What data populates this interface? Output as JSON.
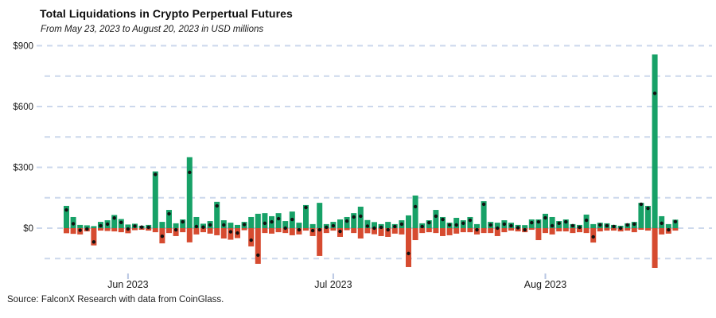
{
  "page": {
    "title": "Total Liquidations in Crypto Perpertual Futures",
    "subtitle": "From May 23, 2023 to August 20, 2023 in USD millions",
    "source": "Source: FalconX Research with data from CoinGlass."
  },
  "colors": {
    "up_bar": "#17a167",
    "down_bar": "#d64b30",
    "dot": "#111111",
    "grid": "#ccd8ec",
    "tick_mark": "#b9c7e3",
    "axis_text": "#1a1a1a"
  },
  "chart_data": {
    "type": "bar",
    "title": "Total Liquidations in Crypto Perpertual Futures",
    "subtitle": "From May 23, 2023 to August 20, 2023 in USD millions",
    "unit": "USD millions",
    "date_start": "2023-05-23",
    "date_end": "2023-08-20",
    "x_ticks": [
      {
        "date": "2023-06-01",
        "label": "Jun 2023"
      },
      {
        "date": "2023-07-01",
        "label": "Jul 2023"
      },
      {
        "date": "2023-08-01",
        "label": "Aug 2023"
      }
    ],
    "y_ticks": [
      {
        "value": 0,
        "label": "$0"
      },
      {
        "value": 300,
        "label": "$300"
      },
      {
        "value": 600,
        "label": "$600"
      },
      {
        "value": 900,
        "label": "$900"
      }
    ],
    "y_minor_ticks": [
      -150,
      150,
      450,
      750
    ],
    "ylim": [
      -250,
      900
    ],
    "grid": "dashed horizontal",
    "legend_position": "none",
    "columns": [
      "date",
      "up_green",
      "down_red",
      "net_dot"
    ],
    "days": [
      [
        "May 23",
        110,
        -25,
        90
      ],
      [
        "May 24",
        55,
        -28,
        22
      ],
      [
        "May 25",
        16,
        -31,
        -10
      ],
      [
        "May 26",
        14,
        -16,
        -4
      ],
      [
        "May 27",
        10,
        -85,
        -68
      ],
      [
        "May 28",
        31,
        -12,
        12
      ],
      [
        "May 29",
        39,
        -14,
        20
      ],
      [
        "May 30",
        65,
        -16,
        50
      ],
      [
        "May 31",
        45,
        -20,
        28
      ],
      [
        "Jun 1",
        18,
        -25,
        -4
      ],
      [
        "Jun 2",
        22,
        -10,
        10
      ],
      [
        "Jun 3",
        12,
        -8,
        5
      ],
      [
        "Jun 4",
        16,
        -12,
        4
      ],
      [
        "Jun 5",
        280,
        -20,
        265
      ],
      [
        "Jun 6",
        31,
        -75,
        -40
      ],
      [
        "Jun 7",
        90,
        -24,
        71
      ],
      [
        "Jun 8",
        24,
        -39,
        -8
      ],
      [
        "Jun 9",
        43,
        -20,
        31
      ],
      [
        "Jun 10",
        350,
        -70,
        275
      ],
      [
        "Jun 11",
        55,
        -31,
        8
      ],
      [
        "Jun 12",
        22,
        -20,
        5
      ],
      [
        "Jun 13",
        35,
        -27,
        16
      ],
      [
        "Jun 14",
        130,
        -35,
        110
      ],
      [
        "Jun 15",
        39,
        -51,
        16
      ],
      [
        "Jun 16",
        27,
        -57,
        -18
      ],
      [
        "Jun 17",
        16,
        -49,
        -24
      ],
      [
        "Jun 18",
        31,
        -10,
        18
      ],
      [
        "Jun 19",
        55,
        -90,
        -59
      ],
      [
        "Jun 20",
        71,
        -176,
        -133
      ],
      [
        "Jun 21",
        74,
        -24,
        24
      ],
      [
        "Jun 22",
        59,
        -27,
        31
      ],
      [
        "Jun 23",
        74,
        -20,
        47
      ],
      [
        "Jun 24",
        35,
        -24,
        0
      ],
      [
        "Jun 25",
        82,
        -35,
        43
      ],
      [
        "Jun 26",
        27,
        -31,
        -8
      ],
      [
        "Jun 27",
        114,
        -12,
        102
      ],
      [
        "Jun 28",
        20,
        -39,
        -12
      ],
      [
        "Jun 29",
        125,
        -137,
        -8
      ],
      [
        "Jun 30",
        20,
        -24,
        4
      ],
      [
        "Jul 1",
        31,
        -12,
        12
      ],
      [
        "Jul 2",
        43,
        -43,
        -16
      ],
      [
        "Jul 3",
        55,
        -10,
        35
      ],
      [
        "Jul 4",
        74,
        -24,
        55
      ],
      [
        "Jul 5",
        106,
        -51,
        59
      ],
      [
        "Jul 6",
        40,
        -25,
        10
      ],
      [
        "Jul 7",
        30,
        -30,
        0
      ],
      [
        "Jul 8",
        20,
        -39,
        4
      ],
      [
        "Jul 9",
        31,
        -43,
        -8
      ],
      [
        "Jul 10",
        20,
        -27,
        8
      ],
      [
        "Jul 11",
        39,
        -31,
        20
      ],
      [
        "Jul 12",
        63,
        -192,
        -125
      ],
      [
        "Jul 13",
        161,
        -59,
        106
      ],
      [
        "Jul 14",
        24,
        -24,
        8
      ],
      [
        "Jul 15",
        39,
        -20,
        27
      ],
      [
        "Jul 16",
        90,
        -24,
        59
      ],
      [
        "Jul 17",
        55,
        -39,
        43
      ],
      [
        "Jul 18",
        27,
        -35,
        16
      ],
      [
        "Jul 19",
        51,
        -27,
        16
      ],
      [
        "Jul 20",
        39,
        -20,
        24
      ],
      [
        "Jul 21",
        55,
        -20,
        39
      ],
      [
        "Jul 22",
        20,
        -31,
        -8
      ],
      [
        "Jul 23",
        133,
        -24,
        118
      ],
      [
        "Jul 24",
        31,
        -24,
        16
      ],
      [
        "Jul 25",
        27,
        -39,
        0
      ],
      [
        "Jul 26",
        39,
        -20,
        20
      ],
      [
        "Jul 27",
        27,
        -12,
        12
      ],
      [
        "Jul 28",
        16,
        -16,
        2
      ],
      [
        "Jul 29",
        15,
        -20,
        -8
      ],
      [
        "Jul 30",
        43,
        -8,
        27
      ],
      [
        "Jul 31",
        43,
        -59,
        31
      ],
      [
        "Aug 1",
        71,
        -24,
        51
      ],
      [
        "Aug 2",
        55,
        -31,
        12
      ],
      [
        "Aug 3",
        35,
        -16,
        24
      ],
      [
        "Aug 4",
        43,
        -16,
        31
      ],
      [
        "Aug 5",
        20,
        -24,
        12
      ],
      [
        "Aug 6",
        16,
        -20,
        4
      ],
      [
        "Aug 7",
        67,
        -24,
        39
      ],
      [
        "Aug 8",
        20,
        -71,
        -43
      ],
      [
        "Aug 9",
        27,
        -16,
        16
      ],
      [
        "Aug 10",
        24,
        -12,
        12
      ],
      [
        "Aug 11",
        16,
        -12,
        8
      ],
      [
        "Aug 12",
        12,
        -16,
        0
      ],
      [
        "Aug 13",
        24,
        -12,
        16
      ],
      [
        "Aug 14",
        31,
        -20,
        20
      ],
      [
        "Aug 15",
        125,
        -8,
        118
      ],
      [
        "Aug 16",
        110,
        -12,
        98
      ],
      [
        "Aug 17",
        857,
        -196,
        665
      ],
      [
        "Aug 18",
        59,
        -31,
        24
      ],
      [
        "Aug 19",
        20,
        -27,
        -8
      ],
      [
        "Aug 20",
        42,
        -12,
        32
      ]
    ]
  }
}
